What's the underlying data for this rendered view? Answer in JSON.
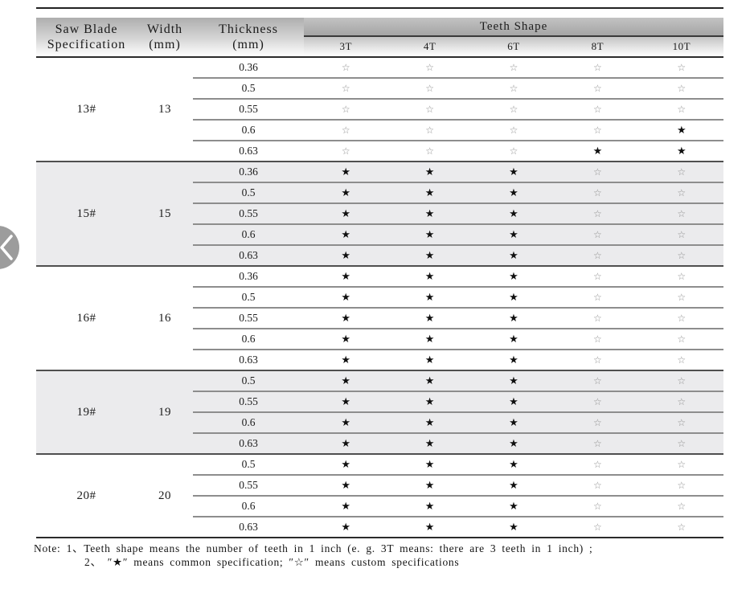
{
  "table": {
    "header": {
      "spec": {
        "line1": "Saw Blade",
        "line2": "Specification"
      },
      "width": {
        "line1": "Width",
        "line2": "(mm)"
      },
      "thickness": {
        "line1": "Thickness",
        "line2": "(mm)"
      },
      "teeth_group": "Teeth Shape",
      "teeth_cols": [
        "3T",
        "4T",
        "6T",
        "8T",
        "10T"
      ]
    },
    "legend": {
      "common": "★",
      "custom": "☆"
    },
    "groups": [
      {
        "spec": "13#",
        "width": "13",
        "shaded": false,
        "rows": [
          {
            "thickness": "0.36",
            "teeth": [
              "custom",
              "custom",
              "custom",
              "custom",
              "custom"
            ]
          },
          {
            "thickness": "0.5",
            "teeth": [
              "custom",
              "custom",
              "custom",
              "custom",
              "custom"
            ]
          },
          {
            "thickness": "0.55",
            "teeth": [
              "custom",
              "custom",
              "custom",
              "custom",
              "custom"
            ]
          },
          {
            "thickness": "0.6",
            "teeth": [
              "custom",
              "custom",
              "custom",
              "custom",
              "common"
            ]
          },
          {
            "thickness": "0.63",
            "teeth": [
              "custom",
              "custom",
              "custom",
              "common",
              "common"
            ]
          }
        ]
      },
      {
        "spec": "15#",
        "width": "15",
        "shaded": true,
        "rows": [
          {
            "thickness": "0.36",
            "teeth": [
              "common",
              "common",
              "common",
              "custom",
              "custom"
            ]
          },
          {
            "thickness": "0.5",
            "teeth": [
              "common",
              "common",
              "common",
              "custom",
              "custom"
            ]
          },
          {
            "thickness": "0.55",
            "teeth": [
              "common",
              "common",
              "common",
              "custom",
              "custom"
            ]
          },
          {
            "thickness": "0.6",
            "teeth": [
              "common",
              "common",
              "common",
              "custom",
              "custom"
            ]
          },
          {
            "thickness": "0.63",
            "teeth": [
              "common",
              "common",
              "common",
              "custom",
              "custom"
            ]
          }
        ]
      },
      {
        "spec": "16#",
        "width": "16",
        "shaded": false,
        "rows": [
          {
            "thickness": "0.36",
            "teeth": [
              "common",
              "common",
              "common",
              "custom",
              "custom"
            ]
          },
          {
            "thickness": "0.5",
            "teeth": [
              "common",
              "common",
              "common",
              "custom",
              "custom"
            ]
          },
          {
            "thickness": "0.55",
            "teeth": [
              "common",
              "common",
              "common",
              "custom",
              "custom"
            ]
          },
          {
            "thickness": "0.6",
            "teeth": [
              "common",
              "common",
              "common",
              "custom",
              "custom"
            ]
          },
          {
            "thickness": "0.63",
            "teeth": [
              "common",
              "common",
              "common",
              "custom",
              "custom"
            ]
          }
        ]
      },
      {
        "spec": "19#",
        "width": "19",
        "shaded": true,
        "rows": [
          {
            "thickness": "0.5",
            "teeth": [
              "common",
              "common",
              "common",
              "custom",
              "custom"
            ]
          },
          {
            "thickness": "0.55",
            "teeth": [
              "common",
              "common",
              "common",
              "custom",
              "custom"
            ]
          },
          {
            "thickness": "0.6",
            "teeth": [
              "common",
              "common",
              "common",
              "custom",
              "custom"
            ]
          },
          {
            "thickness": "0.63",
            "teeth": [
              "common",
              "common",
              "common",
              "custom",
              "custom"
            ]
          }
        ]
      },
      {
        "spec": "20#",
        "width": "20",
        "shaded": false,
        "rows": [
          {
            "thickness": "0.5",
            "teeth": [
              "common",
              "common",
              "common",
              "custom",
              "custom"
            ]
          },
          {
            "thickness": "0.55",
            "teeth": [
              "common",
              "common",
              "common",
              "custom",
              "custom"
            ]
          },
          {
            "thickness": "0.6",
            "teeth": [
              "common",
              "common",
              "common",
              "custom",
              "custom"
            ]
          },
          {
            "thickness": "0.63",
            "teeth": [
              "common",
              "common",
              "common",
              "custom",
              "custom"
            ]
          }
        ]
      }
    ]
  },
  "note": {
    "label": "Note:",
    "line1": "1、Teeth shape means the number of teeth in 1 inch (e. g.  3T   means:  there are 3 teeth in 1 inch) ;",
    "line2": "2、 ″★″ means common specification;  ″☆″ means custom specifications"
  },
  "colors": {
    "common_star": "#101010",
    "custom_star": "#8f8f8f",
    "shaded_group_bg": "#ebebed",
    "carousel_button": "#9c9c9c"
  }
}
